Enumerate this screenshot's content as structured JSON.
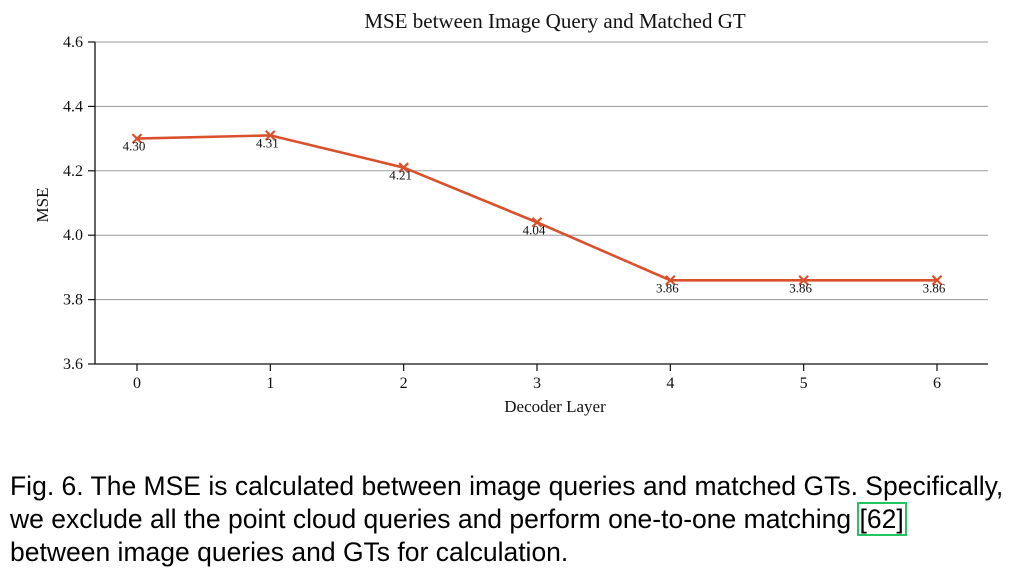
{
  "chart_data": {
    "type": "line",
    "title": "MSE between Image Query and Matched GT",
    "xlabel": "Decoder Layer",
    "ylabel": "MSE",
    "x": [
      0,
      1,
      2,
      3,
      4,
      5,
      6
    ],
    "xticks": [
      "0",
      "1",
      "2",
      "3",
      "4",
      "5",
      "6"
    ],
    "yticks": [
      "3.6",
      "3.8",
      "4.0",
      "4.2",
      "4.4",
      "4.6"
    ],
    "ylim": [
      3.6,
      4.6
    ],
    "grid": "horizontal",
    "marker": "x",
    "series": [
      {
        "values": [
          4.3,
          4.31,
          4.21,
          4.04,
          3.86,
          3.86,
          3.86
        ],
        "labels": [
          "4.30",
          "4.31",
          "4.21",
          "4.04",
          "3.86",
          "3.86",
          "3.86"
        ],
        "color": "#d9512c"
      }
    ]
  },
  "caption": {
    "prefix": "Fig. 6. The MSE is calculated between image queries and matched GTs. Specifically, we exclude all the point cloud queries and perform one-to-one matching ",
    "citation": "[62]",
    "suffix": " between image queries and GTs for calculation."
  }
}
